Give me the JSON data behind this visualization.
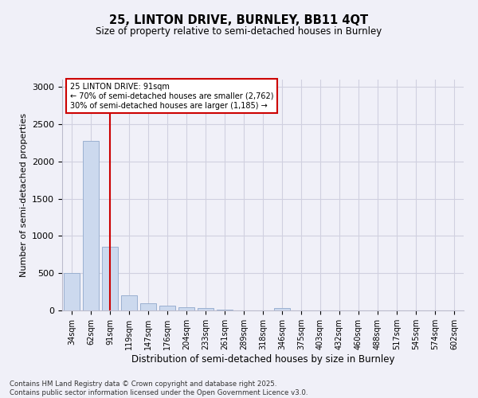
{
  "title1": "25, LINTON DRIVE, BURNLEY, BB11 4QT",
  "title2": "Size of property relative to semi-detached houses in Burnley",
  "xlabel": "Distribution of semi-detached houses by size in Burnley",
  "ylabel": "Number of semi-detached properties",
  "categories": [
    "34sqm",
    "62sqm",
    "91sqm",
    "119sqm",
    "147sqm",
    "176sqm",
    "204sqm",
    "233sqm",
    "261sqm",
    "289sqm",
    "318sqm",
    "346sqm",
    "375sqm",
    "403sqm",
    "432sqm",
    "460sqm",
    "488sqm",
    "517sqm",
    "545sqm",
    "574sqm",
    "602sqm"
  ],
  "values": [
    500,
    2280,
    850,
    200,
    100,
    65,
    45,
    30,
    15,
    5,
    0,
    30,
    0,
    0,
    0,
    0,
    0,
    0,
    0,
    0,
    0
  ],
  "bar_color": "#ccd9ee",
  "bar_edge_color": "#9ab0d0",
  "vline_index": 2,
  "vline_color": "#cc0000",
  "annotation_title": "25 LINTON DRIVE: 91sqm",
  "annotation_line1": "← 70% of semi-detached houses are smaller (2,762)",
  "annotation_line2": "30% of semi-detached houses are larger (1,185) →",
  "annotation_box_color": "#cc0000",
  "ylim": [
    0,
    3100
  ],
  "yticks": [
    0,
    500,
    1000,
    1500,
    2000,
    2500,
    3000
  ],
  "footer": "Contains HM Land Registry data © Crown copyright and database right 2025.\nContains public sector information licensed under the Open Government Licence v3.0.",
  "bg_color": "#f0f0f8",
  "grid_color": "#d0d0e0"
}
